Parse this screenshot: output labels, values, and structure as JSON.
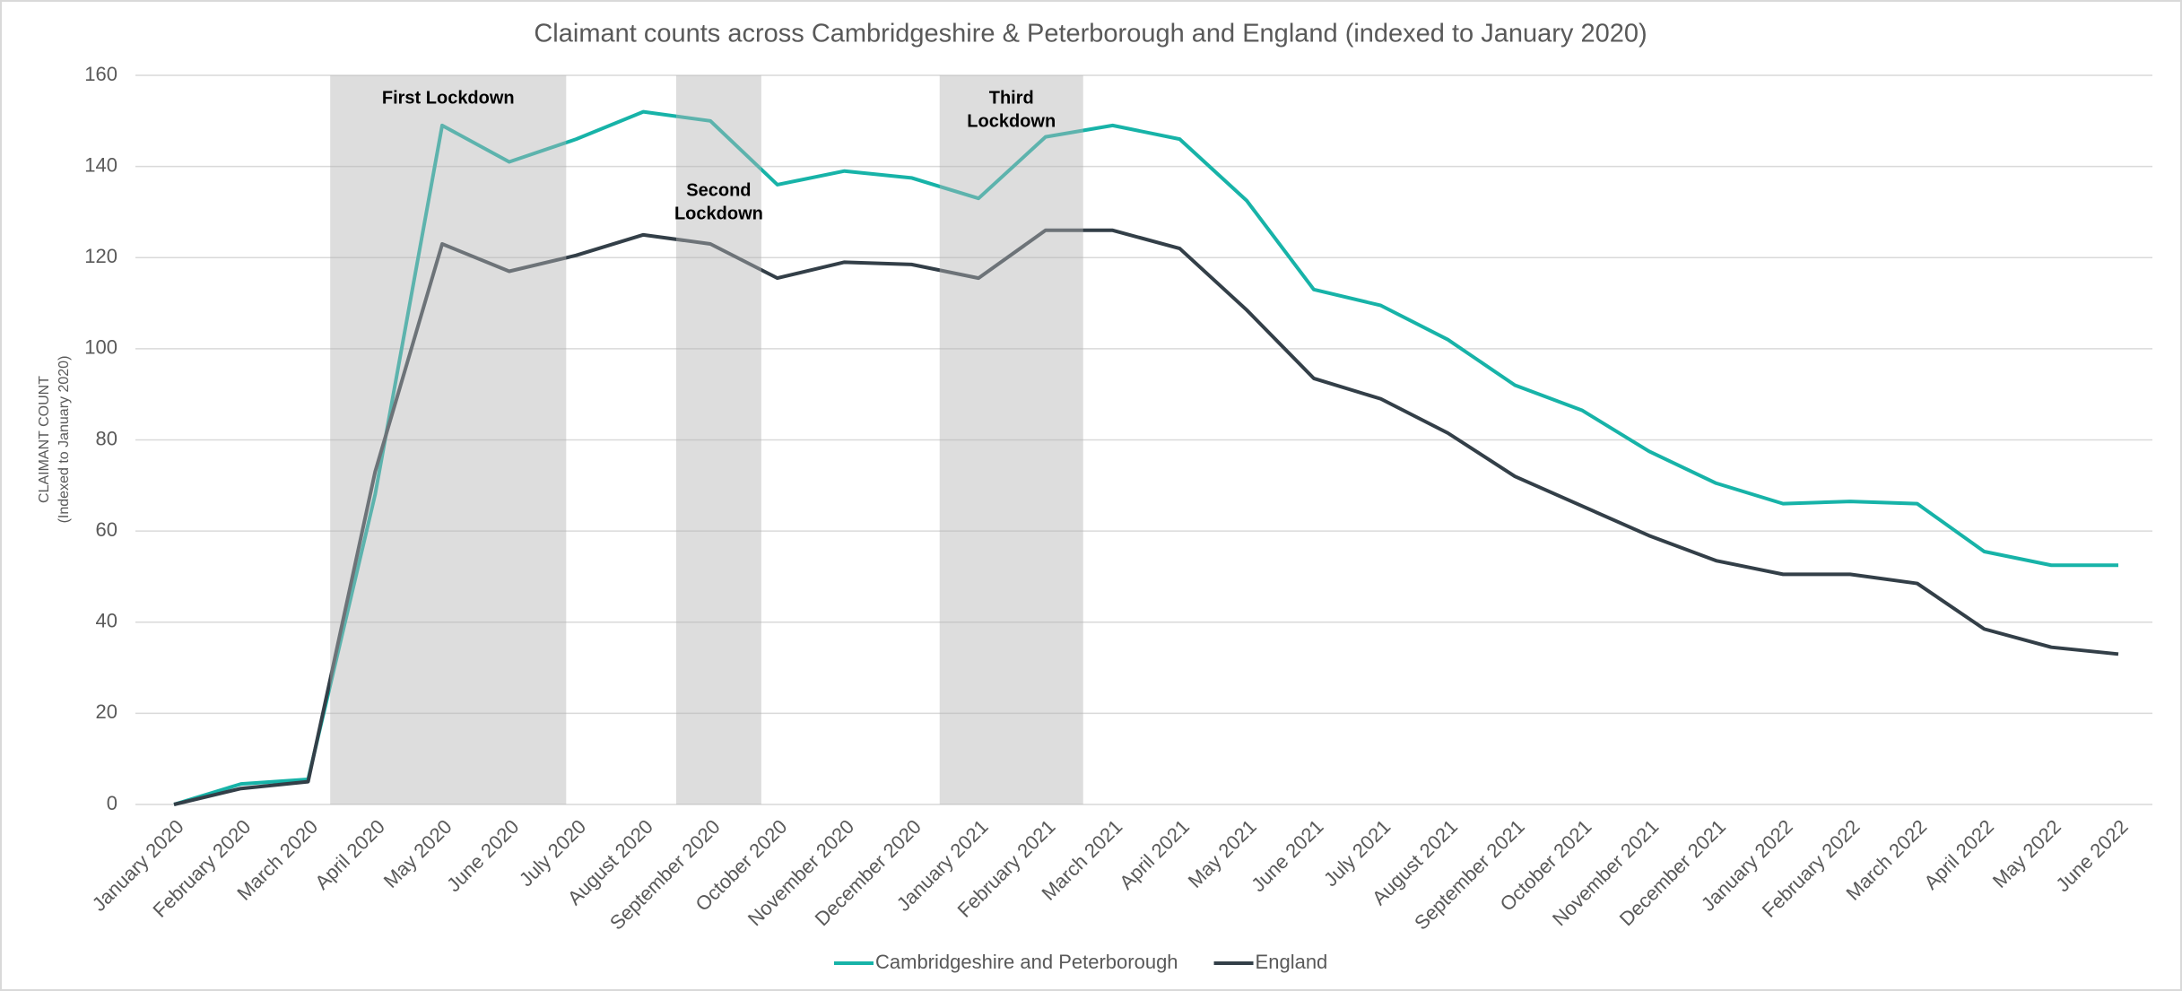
{
  "chart_data": {
    "type": "line",
    "title": "Claimant counts across Cambridgeshire & Peterborough and England (indexed to January 2020)",
    "y_label": [
      "CLAIMANT COUNT",
      "(Indexed to January 2020)"
    ],
    "categories": [
      "January 2020",
      "February 2020",
      "March 2020",
      "April 2020",
      "May 2020",
      "June 2020",
      "July 2020",
      "August 2020",
      "September 2020",
      "October 2020",
      "November 2020",
      "December 2020",
      "January 2021",
      "February 2021",
      "March 2021",
      "April 2021",
      "May 2021",
      "June 2021",
      "July 2021",
      "August 2021",
      "September 2021",
      "October 2021",
      "November 2021",
      "December 2021",
      "January 2022",
      "February 2022",
      "March 2022",
      "April 2022",
      "May 2022",
      "June 2022"
    ],
    "series": [
      {
        "name": "Cambridgeshire and Peterborough",
        "color": "#17b3a8",
        "values": [
          0,
          4.5,
          5.5,
          68,
          149,
          141,
          146,
          152,
          150,
          136,
          139,
          137.5,
          133,
          146.5,
          149,
          146,
          132.5,
          113,
          109.5,
          102,
          92,
          86.5,
          77.5,
          70.5,
          66,
          66.5,
          66,
          55.5,
          52.5,
          52.5
        ]
      },
      {
        "name": "England",
        "color": "#333f48",
        "values": [
          0,
          3.5,
          5,
          73,
          123,
          117,
          120.5,
          125,
          123,
          115.5,
          119,
          118.5,
          115.5,
          126,
          126,
          122,
          108.5,
          93.5,
          89,
          81.5,
          72,
          65.5,
          59,
          53.5,
          50.5,
          50.5,
          48.5,
          38.5,
          34.5,
          33
        ]
      }
    ],
    "shaded_periods": [
      {
        "label": [
          "First Lockdown"
        ],
        "start": 2.33,
        "end": 5.85
      },
      {
        "label": [
          "Second",
          "Lockdown"
        ],
        "start": 7.49,
        "end": 8.76
      },
      {
        "label": [
          "Third",
          "Lockdown"
        ],
        "start": 11.42,
        "end": 13.56
      }
    ],
    "ylim": [
      0,
      160
    ],
    "yticks": [
      0,
      20,
      40,
      60,
      80,
      100,
      120,
      140,
      160
    ],
    "grid": true,
    "legend": "bottom"
  }
}
